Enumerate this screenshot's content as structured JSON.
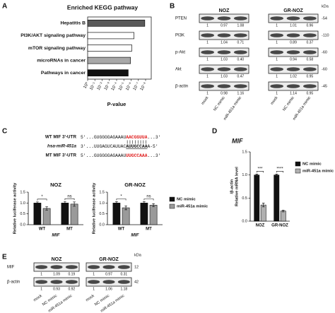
{
  "panel_labels": [
    "A",
    "B",
    "C",
    "D",
    "E"
  ],
  "chart_data": [
    {
      "type": "barh",
      "title": "Enriched KEGG pathway",
      "xlabel": "P-value",
      "categories": [
        "Hepatitis B",
        "PI3K/AKT signaling pathway",
        "mTOR signaling pathway",
        "microRNAs in cancer",
        "Pathways in cancer"
      ],
      "values": [
        1.3e-08,
        4e-07,
        8e-07,
        1.2e-06,
        2.5e-06
      ],
      "colors": [
        "#5a5a5a",
        "#ffffff",
        "#ffffff",
        "#a8a8a8",
        "#111111"
      ],
      "log_x": true,
      "xlim": [
        1,
        1e-08
      ],
      "xticks": [
        {
          "value": 1,
          "label": "10⁰"
        },
        {
          "value": 0.1,
          "label": "10⁻¹"
        },
        {
          "value": 0.01,
          "label": "10⁻²"
        },
        {
          "value": 0.001,
          "label": "10⁻³"
        },
        {
          "value": 0.0001,
          "label": "10⁻⁴"
        },
        {
          "value": 1e-05,
          "label": "10⁻⁵"
        },
        {
          "value": 1e-06,
          "label": "10⁻⁶"
        },
        {
          "value": 1e-07,
          "label": "10⁻⁷"
        },
        {
          "value": 1e-08,
          "label": "10⁻⁸"
        }
      ]
    },
    {
      "type": "grouped_bar",
      "title": "NOZ",
      "ylabel": "Relative luciferase activity",
      "xlabel": "MIF",
      "categories": [
        "WT",
        "MT"
      ],
      "significance": [
        "*",
        "ns"
      ],
      "series": [
        {
          "color": "#111111",
          "values": [
            1,
            1
          ],
          "errors": [
            0.05,
            0.07
          ]
        },
        {
          "color": "#9a9a9a",
          "values": [
            0.75,
            0.95
          ],
          "errors": [
            0.08,
            0.1
          ]
        }
      ],
      "ylim": [
        0,
        1.5
      ],
      "yticks": [
        {
          "value": 0,
          "label": "0.0"
        },
        0.5,
        {
          "value": 1,
          "label": "1.0"
        },
        1.5
      ]
    },
    {
      "type": "grouped_bar",
      "title": "GR-NOZ",
      "ylabel": "Relative luciferase activity",
      "xlabel": "MIF",
      "categories": [
        "WT",
        "MT"
      ],
      "significance": [
        "*",
        "ns"
      ],
      "series": [
        {
          "name": "NC mimic",
          "color": "#111111",
          "values": [
            1,
            1
          ],
          "errors": [
            0.06,
            0.06
          ]
        },
        {
          "name": "miR-451a mimic",
          "color": "#9a9a9a",
          "values": [
            0.78,
            0.9
          ],
          "errors": [
            0.09,
            0.07
          ]
        }
      ],
      "ylim": [
        0,
        1.5
      ],
      "yticks": [
        {
          "value": 0,
          "label": "0.0"
        },
        0.5,
        {
          "value": 1,
          "label": "1.0"
        },
        1.5
      ]
    },
    {
      "type": "grouped_bar",
      "title": "MIF",
      "ylabel": [
        "Relative mRNA level",
        "/β-actin"
      ],
      "categories": [
        "NOZ",
        "GR-NOZ"
      ],
      "significance": [
        "***",
        "****"
      ],
      "series": [
        {
          "name": "NC mimic",
          "color": "#111111",
          "values": [
            1,
            1
          ],
          "errors": [
            0.02,
            0.02
          ]
        },
        {
          "name": "miR-451a mimic",
          "color": "#b0b0b0",
          "values": [
            0.35,
            0.22
          ],
          "errors": [
            0.04,
            0.02
          ]
        }
      ],
      "ylim": [
        0,
        1.5
      ],
      "yticks": [
        {
          "value": 0,
          "label": "0.0"
        },
        0.5,
        {
          "value": 1,
          "label": "1.0"
        },
        1.5
      ]
    }
  ],
  "sequences": [
    {
      "label": "WT MIF 3'-UTR",
      "highlight_color": "#e02020",
      "segments": [
        {
          "text": "5'...GUGGGGAGAAAU",
          "highlight": false
        },
        {
          "text": "AACGGUUA",
          "highlight": true
        },
        {
          "text": "...3'",
          "highlight": false
        }
      ]
    },
    {
      "label": "hsa-miR-451a",
      "highlight_color": "#111111",
      "segments": [
        {
          "text": "3'...UUGAGUCAUUAC",
          "highlight": false
        },
        {
          "text": "AUUGCCAA",
          "highlight": true
        },
        {
          "text": "A-5'",
          "highlight": false
        }
      ]
    },
    {
      "label": "MT MIF 3'-UTR",
      "highlight_color": "#e02020",
      "segments": [
        {
          "text": "5'...GUGGGGAGAAAU",
          "highlight": false
        },
        {
          "text": "UUGCCAAA",
          "highlight": true
        },
        {
          "text": "...3'",
          "highlight": false
        }
      ]
    }
  ],
  "western_blots": [
    {
      "groups": [
        "NOZ",
        "GR-NOZ"
      ],
      "lanes": [
        "mock",
        "NC mimic",
        "miR-451a mimic"
      ],
      "unit": "kDa",
      "rows": [
        {
          "label": "PTEN",
          "kda": "-54",
          "quant": [
            [
              "1",
              "0.97",
              "1.08"
            ],
            [
              "1",
              "1.01",
              "0.96"
            ]
          ]
        },
        {
          "label": "PI3K",
          "kda": "-110",
          "quant": [
            [
              "1",
              "1.04",
              "0.71"
            ],
            [
              "1",
              "0.89",
              "0.37"
            ]
          ]
        },
        {
          "label": "p-Akt",
          "kda": "-60",
          "quant": [
            [
              "1",
              "1.03",
              "0.40"
            ],
            [
              "1",
              "0.94",
              "0.58"
            ]
          ]
        },
        {
          "label": "Akt",
          "kda": "-60",
          "quant": [
            [
              "1",
              "1.03",
              "0.47"
            ],
            [
              "1",
              "1.02",
              "0.95"
            ]
          ]
        },
        {
          "label": "β-actin",
          "kda": "-45",
          "quant": [
            [
              "1",
              "0.98",
              "1.16"
            ],
            [
              "1",
              "1.14",
              "0.95"
            ]
          ]
        }
      ]
    },
    {
      "groups": [
        "NOZ",
        "GR-NOZ"
      ],
      "lanes": [
        "mock",
        "NC mimic",
        "miR-451a mimic"
      ],
      "unit": "kDa",
      "rows": [
        {
          "label": "MIF",
          "kda": "12",
          "quant": [
            [
              "1",
              "1.09",
              "0.19"
            ],
            [
              "1",
              "0.97",
              "0.31"
            ]
          ]
        },
        {
          "label": "β-actin",
          "kda": "42",
          "quant": [
            [
              "1",
              "0.93",
              "0.92"
            ],
            [
              "1",
              "1.06",
              "1.18"
            ]
          ]
        }
      ]
    }
  ]
}
